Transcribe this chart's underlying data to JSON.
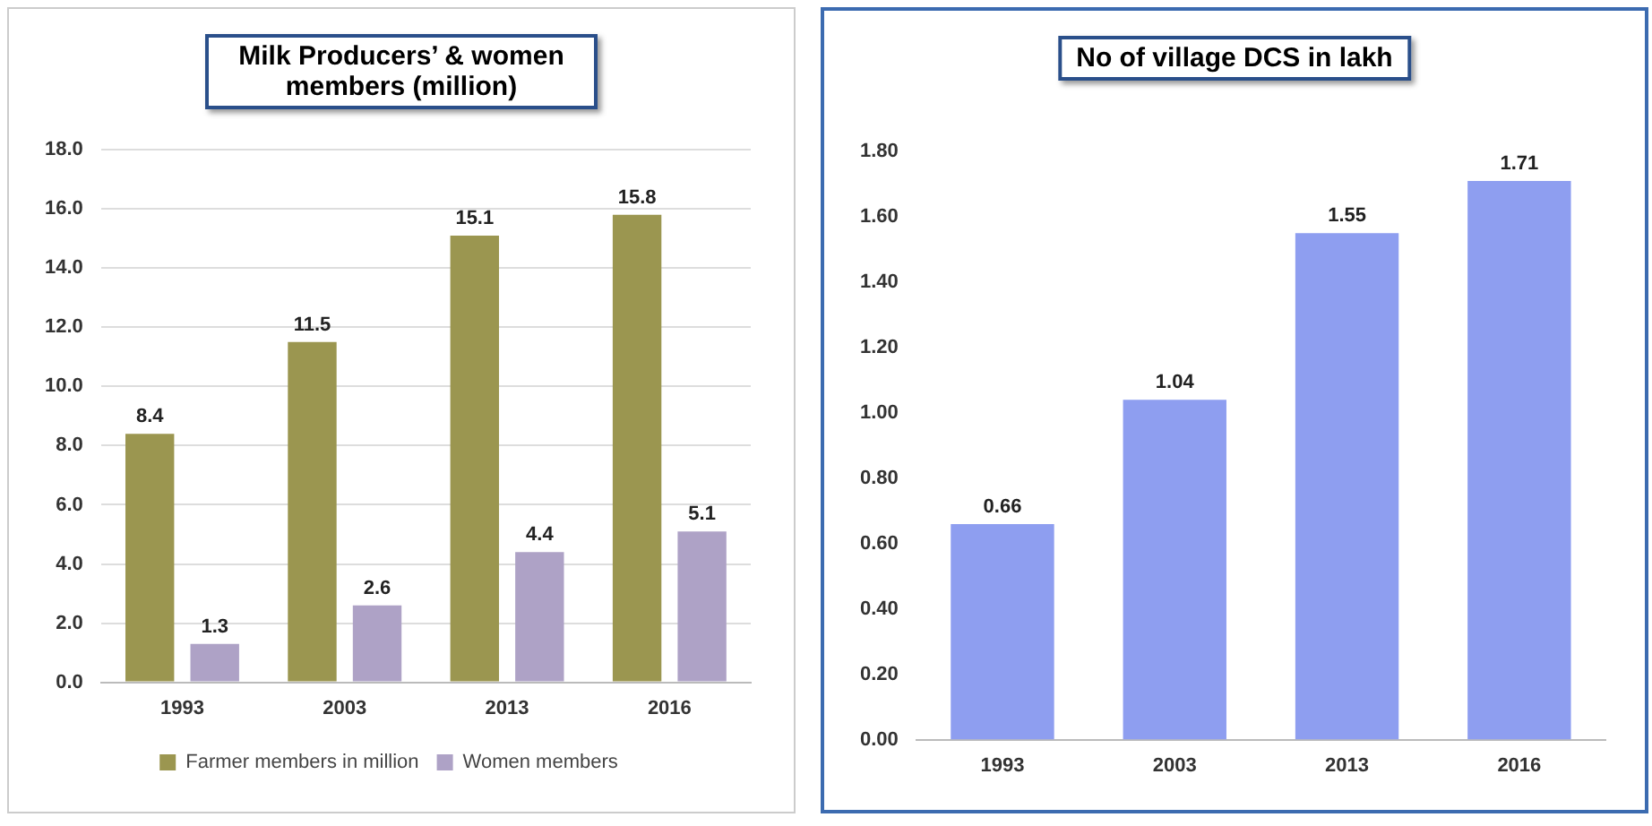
{
  "chart_data": [
    {
      "type": "bar",
      "title": "Milk Producers’ & women members (million)",
      "categories": [
        "1993",
        "2003",
        "2013",
        "2016"
      ],
      "series": [
        {
          "name": "Farmer members in million",
          "color": "#9b9650",
          "values": [
            8.4,
            11.5,
            15.1,
            15.8
          ]
        },
        {
          "name": "Women members",
          "color": "#aea2c6",
          "values": [
            1.3,
            2.6,
            4.4,
            5.1
          ]
        }
      ],
      "ylim": [
        0,
        18
      ],
      "yticks": [
        {
          "value": 0,
          "label": "0.0"
        },
        {
          "value": 2,
          "label": "2.0"
        },
        {
          "value": 4,
          "label": "4.0"
        },
        {
          "value": 6,
          "label": "6.0"
        },
        {
          "value": 8,
          "label": "8.0"
        },
        {
          "value": 10,
          "label": "10.0"
        },
        {
          "value": 12,
          "label": "12.0"
        },
        {
          "value": 14,
          "label": "14.0"
        },
        {
          "value": 16,
          "label": "16.0"
        },
        {
          "value": 18,
          "label": "18.0"
        }
      ],
      "grid": "y",
      "legend": "bottom",
      "data_labels": true
    },
    {
      "type": "bar",
      "title": "No of village DCS in lakh",
      "categories": [
        "1993",
        "2003",
        "2013",
        "2016"
      ],
      "series": [
        {
          "color": "#8e9ef0",
          "values": [
            0.66,
            1.04,
            1.55,
            1.71
          ]
        }
      ],
      "ylim": [
        0,
        1.8
      ],
      "yticks": [
        {
          "value": 0,
          "label": "0.00"
        },
        {
          "value": 0.2,
          "label": "0.20"
        },
        {
          "value": 0.4,
          "label": "0.40"
        },
        {
          "value": 0.6,
          "label": "0.60"
        },
        {
          "value": 0.8,
          "label": "0.80"
        },
        {
          "value": 1,
          "label": "1.00"
        },
        {
          "value": 1.2,
          "label": "1.20"
        },
        {
          "value": 1.4,
          "label": "1.40"
        },
        {
          "value": 1.6,
          "label": "1.60"
        },
        {
          "value": 1.8,
          "label": "1.80"
        }
      ],
      "data_labels": true
    }
  ]
}
